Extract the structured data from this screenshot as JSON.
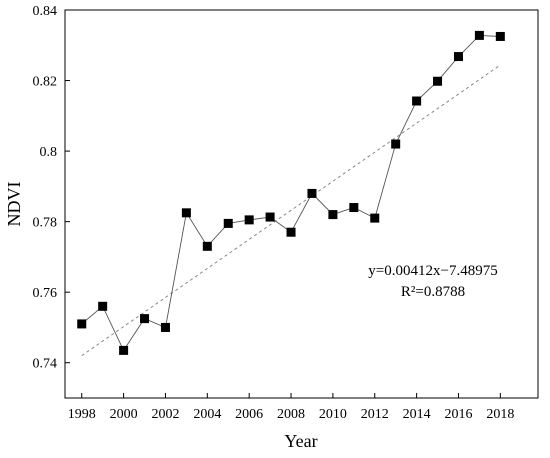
{
  "chart_data": {
    "type": "line",
    "xlabel": "Year",
    "ylabel": "NDVI",
    "xlim": [
      1997.2,
      2019.8
    ],
    "ylim": [
      0.73,
      0.84
    ],
    "x_ticks": [
      1998,
      2000,
      2002,
      2004,
      2006,
      2008,
      2010,
      2012,
      2014,
      2016,
      2018
    ],
    "x_tick_labels": [
      "1998",
      "2000",
      "2002",
      "2004",
      "2006",
      "2008",
      "2010",
      "2012",
      "2014",
      "2016",
      "2018"
    ],
    "y_ticks": [
      0.74,
      0.76,
      0.78,
      0.8,
      0.82,
      0.84
    ],
    "y_tick_labels": [
      "0.74",
      "0.76",
      "0.78",
      "0.8",
      "0.82",
      "0.84"
    ],
    "grid": false,
    "series": [
      {
        "marker": "square",
        "color": "#000000",
        "x": [
          1998,
          1999,
          2000,
          2001,
          2002,
          2003,
          2004,
          2005,
          2006,
          2007,
          2008,
          2009,
          2010,
          2011,
          2012,
          2013,
          2014,
          2015,
          2016,
          2017,
          2018
        ],
        "y": [
          0.751,
          0.756,
          0.7435,
          0.7525,
          0.75,
          0.7825,
          0.773,
          0.7795,
          0.7805,
          0.7813,
          0.777,
          0.788,
          0.782,
          0.784,
          0.781,
          0.802,
          0.8142,
          0.8198,
          0.8268,
          0.8328,
          0.8325
        ]
      }
    ],
    "trendline": {
      "style": "dashed",
      "color": "#888888",
      "slope": 0.00412,
      "intercept": -7.48975,
      "x_range": [
        1998,
        2018
      ]
    },
    "annotations": [
      "y=0.00412x−7.48975",
      "R²=0.8788"
    ]
  }
}
